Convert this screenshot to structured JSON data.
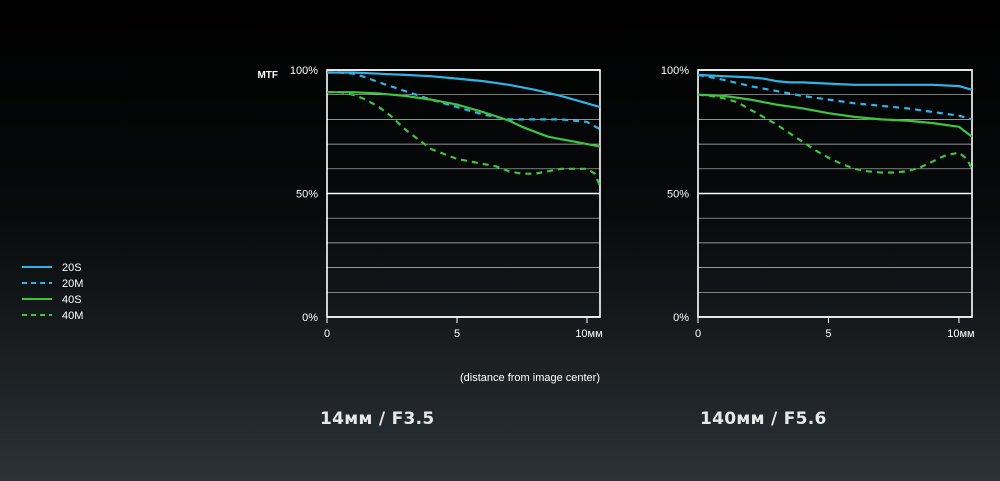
{
  "colors": {
    "background_top": "#000000",
    "background_bottom": "#2c3236",
    "blue": "#2eb4e6",
    "green": "#3fc43f",
    "grid": "#ffffff",
    "text": "#ffffff"
  },
  "legend": {
    "items": [
      {
        "label": "20S",
        "color": "#2eb4e6",
        "dash": false
      },
      {
        "label": "20M",
        "color": "#2eb4e6",
        "dash": true
      },
      {
        "label": "40S",
        "color": "#3fc43f",
        "dash": false
      },
      {
        "label": "40M",
        "color": "#3fc43f",
        "dash": true
      }
    ]
  },
  "chart_data": [
    {
      "type": "line",
      "title": "14мм / F3.5",
      "ylabel": "MTF",
      "xlabel": "(distance from image center)",
      "xlim": [
        0,
        10.5
      ],
      "ylim": [
        0,
        100
      ],
      "x_ticks": [
        {
          "value": 0,
          "label": "0"
        },
        {
          "value": 5,
          "label": "5"
        },
        {
          "value": 10,
          "label": "10мм"
        }
      ],
      "y_ticks": [
        {
          "value": 0,
          "label": "0%"
        },
        {
          "value": 50,
          "label": "50%"
        },
        {
          "value": 100,
          "label": "100%"
        }
      ],
      "grid_step": 10,
      "series": [
        {
          "name": "20S",
          "color": "#2eb4e6",
          "dash": false,
          "x": [
            0,
            1,
            2,
            3,
            4,
            5,
            6,
            7,
            8,
            9,
            10,
            10.5
          ],
          "y": [
            99,
            99,
            98.5,
            98,
            97.5,
            96.5,
            95.5,
            94,
            92,
            89.5,
            86.5,
            85
          ]
        },
        {
          "name": "20M",
          "color": "#2eb4e6",
          "dash": true,
          "x": [
            0,
            0.5,
            1,
            1.5,
            2,
            3,
            4,
            5,
            6,
            7,
            8,
            9,
            10,
            10.5
          ],
          "y": [
            99,
            99,
            98.5,
            97,
            95,
            91.5,
            88,
            85,
            82,
            80,
            80,
            80,
            79,
            76
          ]
        },
        {
          "name": "40S",
          "color": "#3fc43f",
          "dash": false,
          "x": [
            0,
            1,
            2,
            3,
            4,
            5,
            6,
            7,
            7.5,
            8,
            8.5,
            9,
            9.5,
            10,
            10.5
          ],
          "y": [
            91,
            91,
            90.5,
            89.5,
            88,
            86,
            83,
            79.5,
            77,
            75,
            73,
            72,
            71,
            70,
            69
          ]
        },
        {
          "name": "40M",
          "color": "#3fc43f",
          "dash": true,
          "x": [
            0,
            0.5,
            1,
            1.5,
            2,
            2.5,
            3,
            3.5,
            4,
            4.5,
            5,
            5.5,
            6,
            6.5,
            7,
            7.5,
            8,
            8.5,
            9,
            9.5,
            10,
            10.3,
            10.5
          ],
          "y": [
            91,
            91,
            90,
            88,
            85,
            81,
            76,
            72,
            68,
            66,
            64,
            63,
            62,
            61,
            59,
            58,
            58,
            59,
            60,
            60,
            60,
            58,
            53
          ]
        }
      ]
    },
    {
      "type": "line",
      "title": "140мм / F5.6",
      "ylabel": "",
      "xlabel": "",
      "xlim": [
        0,
        10.5
      ],
      "ylim": [
        0,
        100
      ],
      "x_ticks": [
        {
          "value": 0,
          "label": "0"
        },
        {
          "value": 5,
          "label": "5"
        },
        {
          "value": 10,
          "label": "10мм"
        }
      ],
      "y_ticks": [
        {
          "value": 0,
          "label": "0%"
        },
        {
          "value": 50,
          "label": "50%"
        },
        {
          "value": 100,
          "label": "100%"
        }
      ],
      "grid_step": 10,
      "series": [
        {
          "name": "20S",
          "color": "#2eb4e6",
          "dash": false,
          "x": [
            0,
            1,
            2,
            2.5,
            3,
            3.5,
            4,
            5,
            6,
            7,
            8,
            9,
            10,
            10.5
          ],
          "y": [
            98,
            97.5,
            97,
            96.5,
            95.5,
            95,
            95,
            94.5,
            94,
            94,
            94,
            94,
            93.5,
            92
          ]
        },
        {
          "name": "20M",
          "color": "#2eb4e6",
          "dash": true,
          "x": [
            0,
            1,
            2,
            3,
            4,
            5,
            6,
            7,
            8,
            9,
            10,
            10.5
          ],
          "y": [
            98,
            96,
            93.5,
            91.5,
            89.5,
            88,
            86.5,
            85.5,
            84.5,
            83,
            81.5,
            80
          ]
        },
        {
          "name": "40S",
          "color": "#3fc43f",
          "dash": false,
          "x": [
            0,
            1,
            2,
            3,
            4,
            5,
            6,
            7,
            8,
            9,
            10,
            10.5
          ],
          "y": [
            90,
            89.5,
            88,
            86,
            84.5,
            82.5,
            81,
            80,
            79.5,
            78.5,
            77,
            73
          ]
        },
        {
          "name": "40M",
          "color": "#3fc43f",
          "dash": true,
          "x": [
            0,
            0.5,
            1,
            1.5,
            2,
            2.5,
            3,
            3.5,
            4,
            4.5,
            5,
            5.5,
            6,
            6.5,
            7,
            7.5,
            8,
            8.5,
            9,
            9.5,
            10,
            10.3,
            10.5
          ],
          "y": [
            90,
            89.5,
            88.5,
            87,
            84,
            81,
            78,
            74.5,
            71,
            67.5,
            64.5,
            62,
            60,
            59,
            58.5,
            58.5,
            59,
            60.5,
            63,
            65.5,
            66.5,
            64,
            60
          ]
        }
      ]
    }
  ]
}
